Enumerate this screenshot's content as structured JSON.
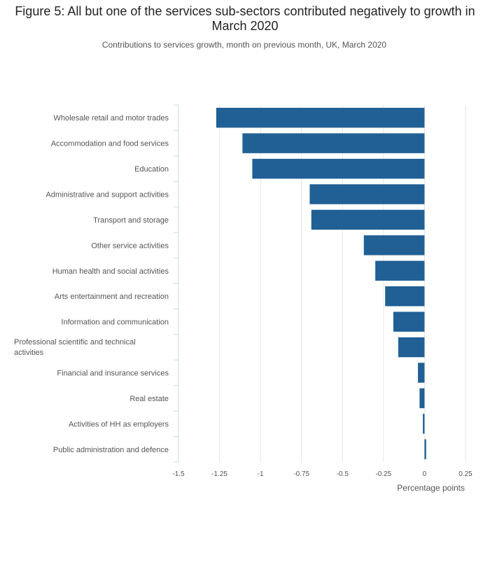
{
  "title": "Figure 5: All but one of the services sub-sectors contributed negatively to growth in March 2020",
  "subtitle": "Contributions to services growth, month on previous month, UK, March 2020",
  "chart_data": {
    "type": "bar",
    "orientation": "horizontal",
    "categories": [
      "Wholesale retail and motor trades",
      "Accommodation and food services",
      "Education",
      "Administrative and support activities",
      "Transport and storage",
      "Other service activities",
      "Human health and social activities",
      "Arts entertainment and recreation",
      "Information and communication",
      "Professional scientific and technical activities",
      "Financial and insurance services",
      "Real estate",
      "Activities of HH as employers",
      "Public administration and defence"
    ],
    "values": [
      -1.27,
      -1.11,
      -1.05,
      -0.7,
      -0.69,
      -0.37,
      -0.3,
      -0.24,
      -0.19,
      -0.16,
      -0.04,
      -0.03,
      -0.01,
      0.01
    ],
    "xlabel": "Percentage points",
    "xlim": [
      -1.5,
      0.25
    ],
    "xticks": [
      -1.5,
      -1.25,
      -1,
      -0.75,
      -0.5,
      -0.25,
      0,
      0.25
    ],
    "xtick_labels": [
      "-1.5",
      "-1.25",
      "-1",
      "-0.75",
      "-0.5",
      "-0.25",
      "0",
      "0.25"
    ],
    "bar_color": "#206095",
    "grid": true,
    "legend": "none"
  }
}
